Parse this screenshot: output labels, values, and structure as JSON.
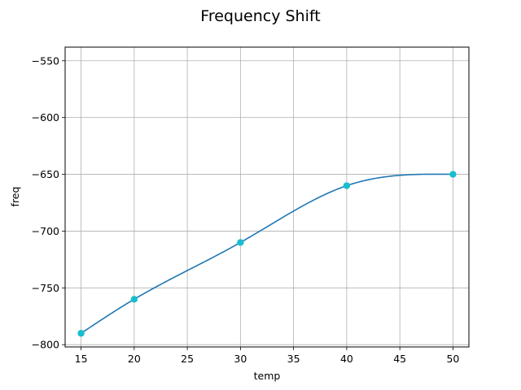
{
  "chart_data": {
    "type": "line",
    "title": "Frequency Shift",
    "xlabel": "temp",
    "ylabel": "freq",
    "xlim": [
      13.5,
      51.5
    ],
    "ylim": [
      -802,
      -538
    ],
    "xticks": [
      15,
      20,
      25,
      30,
      35,
      40,
      45,
      50
    ],
    "yticks": [
      -800,
      -750,
      -700,
      -650,
      -600,
      -550
    ],
    "xtick_labels": [
      "15",
      "20",
      "25",
      "30",
      "35",
      "40",
      "45",
      "50"
    ],
    "ytick_labels": [
      "−800",
      "−750",
      "−700",
      "−650",
      "−600",
      "−550"
    ],
    "grid": true,
    "series": [
      {
        "kind": "smooth-line",
        "color": "#1f77b4",
        "x": [
          15,
          20,
          30,
          40,
          50
        ],
        "y": [
          -790,
          -760,
          -710,
          -660,
          -650
        ]
      },
      {
        "kind": "markers",
        "color": "#17becf",
        "x": [
          15,
          20,
          30,
          40,
          50
        ],
        "y": [
          -790,
          -760,
          -710,
          -660,
          -650
        ]
      }
    ]
  }
}
